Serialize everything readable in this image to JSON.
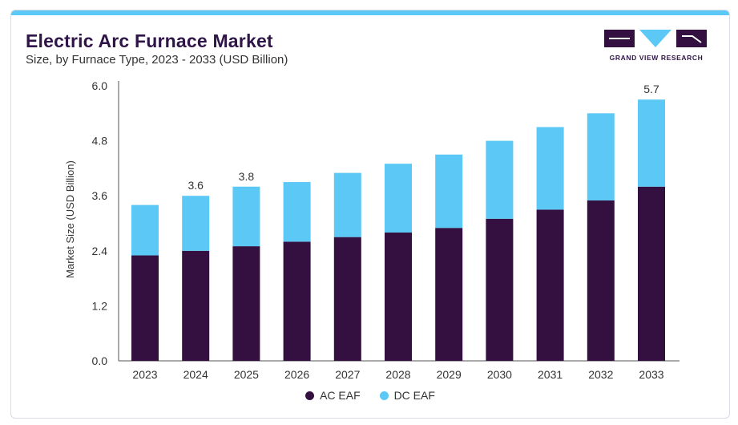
{
  "header": {
    "title": "Electric Arc Furnace Market",
    "subtitle": "Size, by Furnace Type, 2023 - 2033 (USD Billion)"
  },
  "logo": {
    "text": "GRAND VIEW RESEARCH",
    "icon": "grand-view-research-logo"
  },
  "colors": {
    "ac": "#33103f",
    "dc": "#5bc8f5",
    "accent": "#5bc8f5"
  },
  "chart_data": {
    "type": "bar",
    "stacked": true,
    "categories": [
      "2023",
      "2024",
      "2025",
      "2026",
      "2027",
      "2028",
      "2029",
      "2030",
      "2031",
      "2032",
      "2033"
    ],
    "series": [
      {
        "name": "AC EAF",
        "values": [
          2.3,
          2.4,
          2.5,
          2.6,
          2.7,
          2.8,
          2.9,
          3.1,
          3.3,
          3.5,
          3.8
        ]
      },
      {
        "name": "DC EAF",
        "values": [
          1.1,
          1.2,
          1.3,
          1.3,
          1.4,
          1.5,
          1.6,
          1.7,
          1.8,
          1.9,
          1.9
        ]
      }
    ],
    "data_labels": [
      {
        "category": "2024",
        "text": "3.6"
      },
      {
        "category": "2025",
        "text": "3.8"
      },
      {
        "category": "2033",
        "text": "5.7"
      }
    ],
    "title": "Electric Arc Furnace Market",
    "ylabel": "Market Size (USD Billion)",
    "xlabel": "",
    "ylim": [
      0,
      6.0
    ],
    "yticks": [
      "0.0",
      "1.2",
      "2.4",
      "3.6",
      "4.8",
      "6.0"
    ],
    "legend": "bottom-center",
    "grid": false
  }
}
